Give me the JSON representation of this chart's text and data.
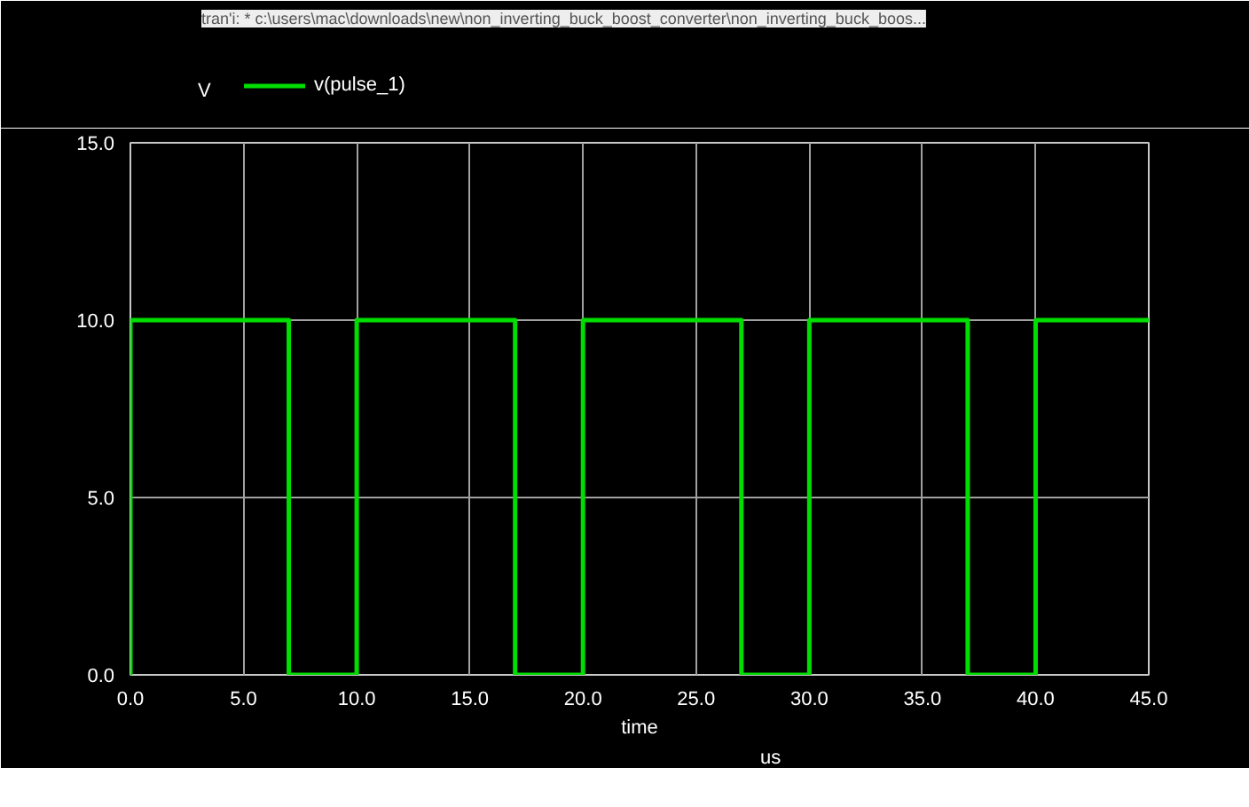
{
  "chart_data": {
    "type": "step",
    "title": "tran'i: * c:\\users\\mac\\downloads\\new\\non_inverting_buck_boost_converter\\non_inverting_buck_boos...",
    "ylabel": "V",
    "xlabel": "time",
    "annotations": [
      "us"
    ],
    "x": [
      0,
      0,
      7,
      10,
      17,
      20,
      27,
      30,
      37,
      40,
      45
    ],
    "series": [
      {
        "name": "v(pulse_1)",
        "color": "#00dd00",
        "values": [
          0,
          10,
          0,
          10,
          0,
          10,
          0,
          10,
          0,
          10,
          10
        ]
      }
    ],
    "xlim": [
      0,
      45
    ],
    "ylim": [
      0,
      15
    ],
    "xticks": [
      {
        "value": 0,
        "label": "0.0"
      },
      {
        "value": 5,
        "label": "5.0"
      },
      {
        "value": 10,
        "label": "10.0"
      },
      {
        "value": 15,
        "label": "15.0"
      },
      {
        "value": 20,
        "label": "20.0"
      },
      {
        "value": 25,
        "label": "25.0"
      },
      {
        "value": 30,
        "label": "30.0"
      },
      {
        "value": 35,
        "label": "35.0"
      },
      {
        "value": 40,
        "label": "40.0"
      },
      {
        "value": 45,
        "label": "45.0"
      }
    ],
    "yticks": [
      {
        "value": 0,
        "label": "0.0"
      },
      {
        "value": 5,
        "label": "5.0"
      },
      {
        "value": 10,
        "label": "10.0"
      },
      {
        "value": 15,
        "label": "15.0"
      }
    ],
    "grid": true,
    "legend": "top left"
  }
}
